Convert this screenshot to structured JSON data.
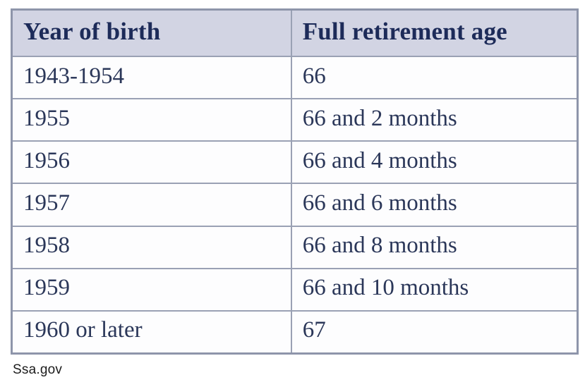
{
  "page": {
    "background": "#ffffff",
    "source_label": "Ssa.gov"
  },
  "table": {
    "columns": [
      "Year of birth",
      "Full retirement age"
    ],
    "rows": [
      [
        "1943-1954",
        "66"
      ],
      [
        "1955",
        "66 and 2 months"
      ],
      [
        "1956",
        "66 and 4 months"
      ],
      [
        "1957",
        "66 and 6 months"
      ],
      [
        "1958",
        "66 and 8 months"
      ],
      [
        "1959",
        "66 and 10 months"
      ],
      [
        "1960 or later",
        "67"
      ]
    ],
    "colors": {
      "header_background": "#d2d4e3",
      "header_text": "#1d2b59",
      "cell_text": "#2b3759",
      "border": "#9aa1b4",
      "outer_border": "#8e95aa"
    }
  },
  "chart_data": {
    "type": "table",
    "title": "",
    "columns": [
      "Year of birth",
      "Full retirement age"
    ],
    "rows": [
      [
        "1943-1954",
        "66"
      ],
      [
        "1955",
        "66 and 2 months"
      ],
      [
        "1956",
        "66 and 4 months"
      ],
      [
        "1957",
        "66 and 6 months"
      ],
      [
        "1958",
        "66 and 8 months"
      ],
      [
        "1959",
        "66 and 10 months"
      ],
      [
        "1960 or later",
        "67"
      ]
    ],
    "source": "Ssa.gov",
    "layout": {
      "header_row": true,
      "grid": true,
      "legend_position": "none"
    }
  }
}
